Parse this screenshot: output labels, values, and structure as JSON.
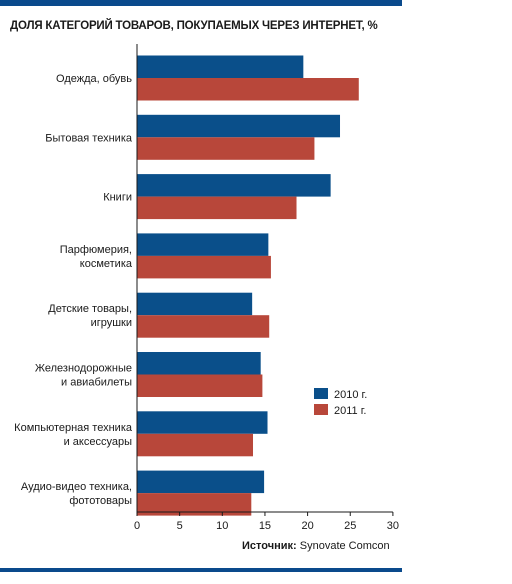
{
  "title": "ДОЛЯ КАТЕГОРИЙ ТОВАРОВ, ПОКУПАЕМЫХ ЧЕРЕЗ ИНТЕРНЕТ, %",
  "source_label": "Источник:",
  "source_value": "Synovate Comcon",
  "colors": {
    "series_2010": "#0a4f8a",
    "series_2011": "#b8473a",
    "rule": "#0a4a8c"
  },
  "chart_data": {
    "type": "bar",
    "orientation": "horizontal",
    "title": "ДОЛЯ КАТЕГОРИЙ ТОВАРОВ, ПОКУПАЕМЫХ ЧЕРЕЗ ИНТЕРНЕТ, %",
    "categories": [
      [
        "Одежда, обувь"
      ],
      [
        "Бытовая техника"
      ],
      [
        "Книги"
      ],
      [
        "Парфюмерия,",
        "косметика"
      ],
      [
        "Детские товары,",
        "игрушки"
      ],
      [
        "Железнодорожные",
        "и авиабилеты"
      ],
      [
        "Компьютерная техника",
        "и аксессуары"
      ],
      [
        "Аудио-видео техника,",
        "фототовары"
      ]
    ],
    "series": [
      {
        "name": "2010 г.",
        "values": [
          19.5,
          23.8,
          22.7,
          15.4,
          13.5,
          14.5,
          15.3,
          14.9
        ]
      },
      {
        "name": "2011 г.",
        "values": [
          26.0,
          20.8,
          18.7,
          15.7,
          15.5,
          14.7,
          13.6,
          13.4
        ]
      }
    ],
    "xlim": [
      0,
      30
    ],
    "xticks": [
      0,
      5,
      10,
      15,
      20,
      25,
      30
    ],
    "legend_position": "bottom-right",
    "grid": false
  }
}
